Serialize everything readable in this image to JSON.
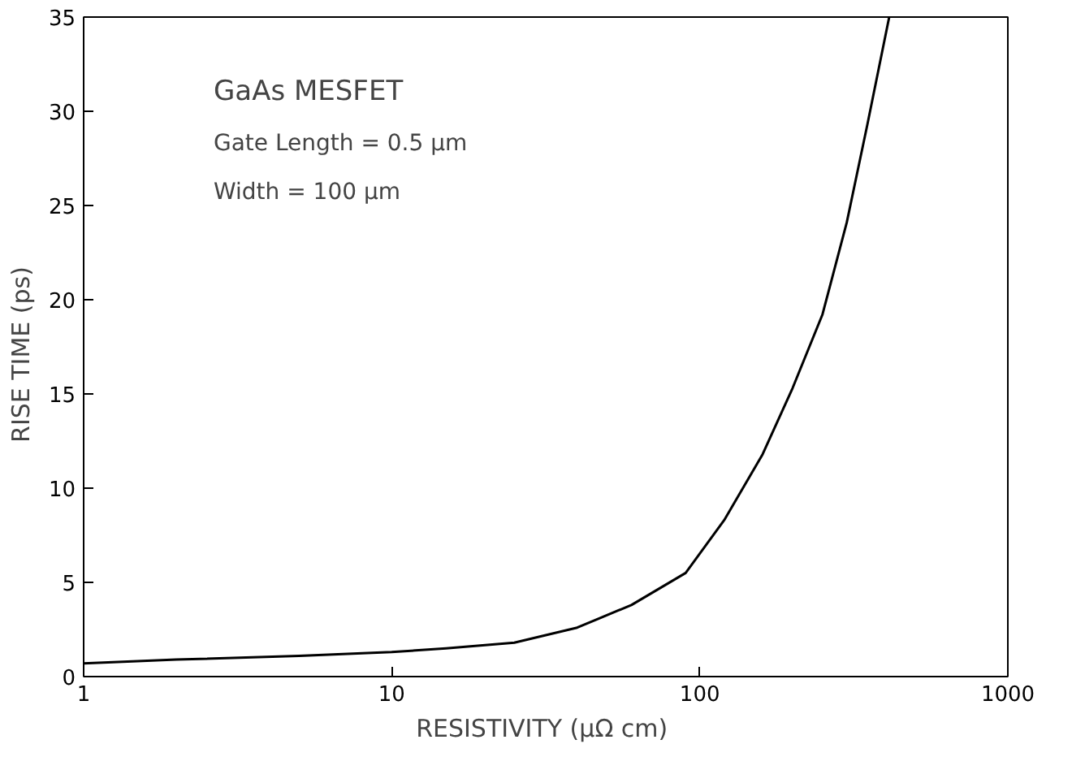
{
  "chart_data": {
    "type": "line",
    "xlabel": "RESISTIVITY  (μΩ cm)",
    "ylabel": "RISE  TIME  (ps)",
    "annotations": [
      "GaAs MESFET",
      "Gate Length = 0.5 μm",
      "Width = 100 μm"
    ],
    "log": "x",
    "x": [
      1,
      2,
      5,
      10,
      15,
      25,
      40,
      60,
      90,
      120,
      160,
      200,
      250,
      300,
      350,
      412
    ],
    "series": [
      {
        "color": "#000000",
        "values": [
          0.7,
          0.9,
          1.1,
          1.3,
          1.5,
          1.8,
          2.6,
          3.8,
          5.5,
          8.3,
          11.8,
          15.3,
          19.2,
          24.1,
          29.3,
          35
        ]
      }
    ],
    "xlim": [
      1,
      1000
    ],
    "ylim": [
      0,
      35
    ],
    "xticks": [
      1,
      10,
      100,
      1000
    ],
    "yticks": [
      0,
      5,
      10,
      15,
      20,
      25,
      30,
      35
    ]
  }
}
